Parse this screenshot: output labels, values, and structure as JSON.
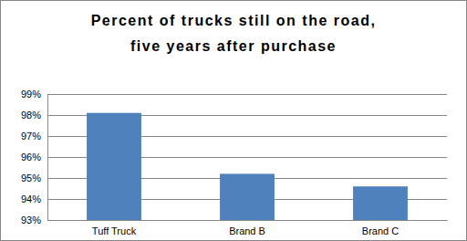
{
  "chart_data": {
    "type": "bar",
    "title": [
      "Percent of trucks still on the road,",
      "five years after purchase"
    ],
    "categories": [
      "Tuff Truck",
      "Brand B",
      "Brand C"
    ],
    "values": [
      98.1,
      95.2,
      94.6
    ],
    "color": "#4f81bd",
    "ylim": [
      93,
      99
    ],
    "yticks": [
      {
        "value": 93,
        "label": "93%"
      },
      {
        "value": 94,
        "label": "94%"
      },
      {
        "value": 95,
        "label": "95%"
      },
      {
        "value": 96,
        "label": "96%"
      },
      {
        "value": 97,
        "label": "97%"
      },
      {
        "value": 98,
        "label": "98%"
      },
      {
        "value": 99,
        "label": "99%"
      }
    ],
    "grid": true
  }
}
